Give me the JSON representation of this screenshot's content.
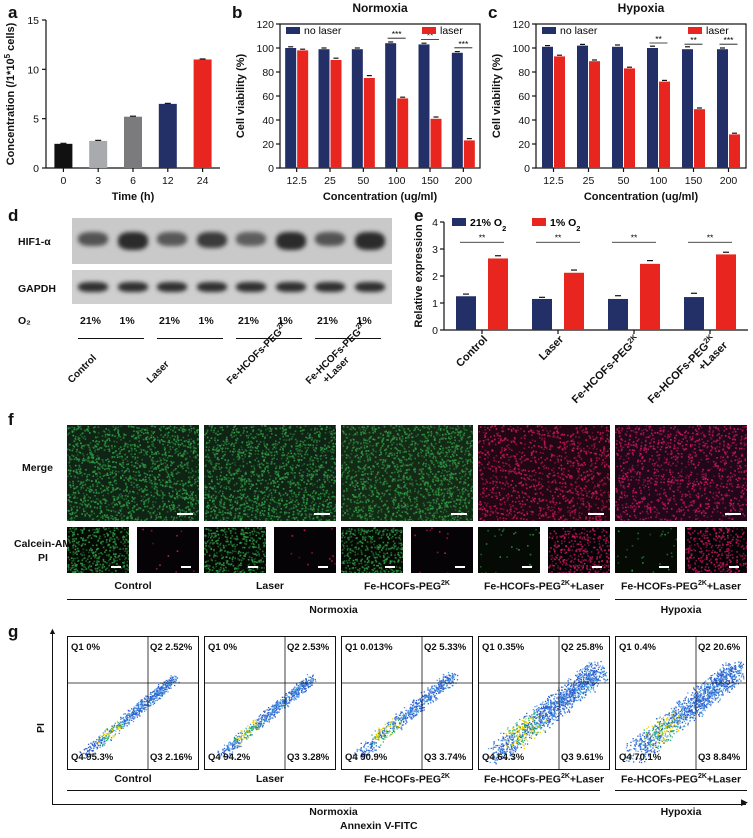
{
  "panels": {
    "a": "a",
    "b": "b",
    "c": "c",
    "d": "d",
    "e": "e",
    "f": "f",
    "g": "g"
  },
  "colors": {
    "navy": "#233068",
    "red": "#e8261f",
    "black": "#111111",
    "gray1": "#a9aaad",
    "gray2": "#7b7b7d",
    "green": "#2f9a44",
    "magenta": "#c8195a"
  },
  "chart_data": [
    {
      "id": "a",
      "type": "bar",
      "categories": [
        "0",
        "3",
        "6",
        "12",
        "24"
      ],
      "values": [
        2.45,
        2.75,
        5.2,
        6.5,
        11.0
      ],
      "errors": [
        0.05,
        0.05,
        0.05,
        0.05,
        0.05
      ],
      "bar_colors": [
        "#111111",
        "#a9aaad",
        "#7b7b7d",
        "#233068",
        "#e8261f"
      ],
      "xlabel": "Time (h)",
      "ylabel_main": "Concentration (/1*10",
      "ylabel_sup": "5",
      "ylabel_end": " cells)",
      "ylim": [
        0,
        15
      ],
      "yticks": [
        "0",
        "5",
        "10",
        "15"
      ]
    },
    {
      "id": "b",
      "type": "bar",
      "title": "Normoxia",
      "categories": [
        "12.5",
        "25",
        "50",
        "100",
        "150",
        "200"
      ],
      "series": [
        {
          "name": "no laser",
          "values": [
            100,
            99,
            99,
            104,
            103,
            96
          ],
          "errors": [
            1,
            1,
            1,
            1,
            1,
            1
          ]
        },
        {
          "name": "laser",
          "values": [
            98,
            90,
            75,
            58,
            41,
            23
          ],
          "errors": [
            1,
            1.5,
            2,
            1,
            1.5,
            1.5
          ]
        }
      ],
      "sig": [
        "",
        "",
        "",
        "***",
        "**",
        "***"
      ],
      "xlabel": "Concentration (ug/ml)",
      "ylabel": "Cell viability (%)",
      "ylim": [
        0,
        120
      ],
      "yticks": [
        "0",
        "20",
        "40",
        "60",
        "80",
        "100",
        "120"
      ]
    },
    {
      "id": "c",
      "type": "bar",
      "title": "Hypoxia",
      "categories": [
        "12.5",
        "25",
        "50",
        "100",
        "150",
        "200"
      ],
      "series": [
        {
          "name": "no laser",
          "values": [
            101,
            102,
            101,
            100,
            99,
            99
          ],
          "errors": [
            1,
            1,
            1.5,
            1.5,
            2,
            1
          ]
        },
        {
          "name": "laser",
          "values": [
            93,
            89,
            83,
            72,
            49,
            28
          ],
          "errors": [
            1,
            1,
            1,
            1,
            1,
            1
          ]
        }
      ],
      "sig": [
        "",
        "",
        "",
        "**",
        "**",
        "***"
      ],
      "xlabel": "Concentration (ug/ml)",
      "ylabel": "Cell viability (%)",
      "ylim": [
        0,
        120
      ],
      "yticks": [
        "0",
        "20",
        "40",
        "60",
        "80",
        "100",
        "120"
      ]
    },
    {
      "id": "e",
      "type": "bar",
      "categories": [
        "Control",
        "Laser",
        "Fe-HCOFs-PEG",
        "Fe-HCOFs-PEG"
      ],
      "category_sup": [
        "",
        "",
        "2K",
        "2K"
      ],
      "category_line2": [
        "",
        "",
        "",
        "+Laser"
      ],
      "series": [
        {
          "name_main": "21% O",
          "name_sub": "2",
          "values": [
            1.25,
            1.15,
            1.15,
            1.22
          ],
          "errors": [
            0.08,
            0.06,
            0.12,
            0.14
          ]
        },
        {
          "name_main": "1% O",
          "name_sub": "2",
          "values": [
            2.65,
            2.12,
            2.45,
            2.8
          ],
          "errors": [
            0.1,
            0.1,
            0.12,
            0.08
          ]
        }
      ],
      "sig": [
        "**",
        "**",
        "**",
        "**"
      ],
      "ylabel": "Relative expression",
      "ylim": [
        0,
        4
      ],
      "yticks": [
        "0",
        "1",
        "2",
        "3",
        "4"
      ]
    }
  ],
  "western": {
    "rows": [
      "HIF1-α",
      "GAPDH"
    ],
    "o2_label": "O₂",
    "o2": [
      "21%",
      "1%",
      "21%",
      "1%",
      "21%",
      "1%",
      "21%",
      "1%"
    ],
    "groups": [
      "Control",
      "Laser",
      "Fe-HCOFs-PEG",
      "Fe-HCOFs-PEG"
    ],
    "group_sup": [
      "",
      "",
      "2K",
      "2K"
    ],
    "group_line2": [
      "",
      "",
      "",
      "+Laser"
    ]
  },
  "fluor": {
    "row_merge": "Merge",
    "row_stain_1": "Calcein-AM/",
    "row_stain_2": "PI",
    "groups": [
      {
        "main": "Control",
        "sup": "",
        "tail": ""
      },
      {
        "main": "Laser",
        "sup": "",
        "tail": ""
      },
      {
        "main": "Fe-HCOFs-PEG",
        "sup": "2K",
        "tail": ""
      },
      {
        "main": "Fe-HCOFs-PEG",
        "sup": "2K",
        "tail": "+Laser"
      },
      {
        "main": "Fe-HCOFs-PEG",
        "sup": "2K",
        "tail": "+Laser"
      }
    ],
    "conditions": [
      "Normoxia",
      "Hypoxia"
    ]
  },
  "flow": {
    "ylabel": "PI",
    "xlabel": "Annexin V-FITC",
    "plots": [
      {
        "q1": "Q1 0%",
        "q2": "Q2 2.52%",
        "q3": "Q3 2.16%",
        "q4": "Q4 95.3%"
      },
      {
        "q1": "Q1 0%",
        "q2": "Q2 2.53%",
        "q3": "Q3 3.28%",
        "q4": "Q4 94.2%"
      },
      {
        "q1": "Q1 0.013%",
        "q2": "Q2 5.33%",
        "q3": "Q3 3.74%",
        "q4": "Q4 90.9%"
      },
      {
        "q1": "Q1 0.35%",
        "q2": "Q2 25.8%",
        "q3": "Q3 9.61%",
        "q4": "Q4 64.3%"
      },
      {
        "q1": "Q1 0.4%",
        "q2": "Q2 20.6%",
        "q3": "Q3 8.84%",
        "q4": "Q4 70.1%"
      }
    ],
    "groups": [
      {
        "main": "Control",
        "sup": "",
        "tail": ""
      },
      {
        "main": "Laser",
        "sup": "",
        "tail": ""
      },
      {
        "main": "Fe-HCOFs-PEG",
        "sup": "2K",
        "tail": ""
      },
      {
        "main": "Fe-HCOFs-PEG",
        "sup": "2K",
        "tail": "+Laser"
      },
      {
        "main": "Fe-HCOFs-PEG",
        "sup": "2K",
        "tail": "+Laser"
      }
    ],
    "conditions": [
      "Normoxia",
      "Hypoxia"
    ]
  }
}
